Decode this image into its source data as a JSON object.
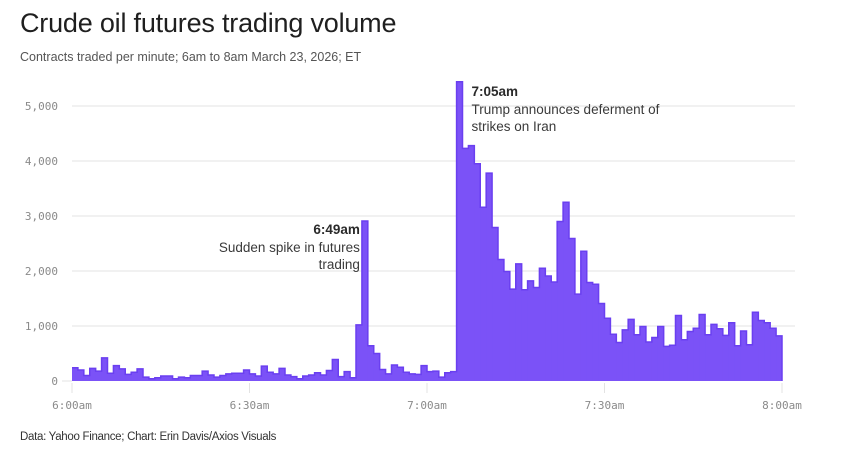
{
  "header": {
    "title": "Crude oil futures trading volume",
    "subtitle": "Contracts traded per minute; 6am to 8am March 23, 2026; ET"
  },
  "footer": {
    "source": "Data: Yahoo Finance; Chart: Erin Davis/Axios Visuals"
  },
  "colors": {
    "bar_fill": "#7b52f7",
    "bar_stroke": "#6a3ff0",
    "grid": "#e3e3e3",
    "axis_text": "#8a8a8a"
  },
  "chart_data": {
    "type": "area",
    "title": "Crude oil futures trading volume",
    "subtitle": "Contracts traded per minute; 6am to 8am March 23, 2026; ET",
    "xlabel": "",
    "ylabel": "Contracts traded per minute",
    "x_start": "6:00am",
    "x_end": "8:00am",
    "x_unit": "minute",
    "xlim": [
      0,
      120
    ],
    "ylim": [
      0,
      5000
    ],
    "grid": true,
    "y_ticks": [
      0,
      1000,
      2000,
      3000,
      4000,
      5000
    ],
    "y_tick_labels": [
      "0",
      "1,000",
      "2,000",
      "3,000",
      "4,000",
      "5,000"
    ],
    "x_ticks": [
      0,
      30,
      60,
      90,
      120
    ],
    "x_tick_labels": [
      "6:00am",
      "6:30am",
      "7:00am",
      "7:30am",
      "8:00am"
    ],
    "series": [
      {
        "name": "Contracts traded per minute",
        "values": [
          240,
          200,
          100,
          230,
          180,
          420,
          140,
          280,
          220,
          120,
          160,
          220,
          70,
          40,
          60,
          90,
          90,
          40,
          70,
          60,
          100,
          100,
          180,
          110,
          70,
          100,
          130,
          140,
          140,
          200,
          130,
          90,
          270,
          160,
          130,
          230,
          110,
          80,
          40,
          90,
          110,
          150,
          110,
          190,
          390,
          80,
          170,
          60,
          1020,
          2910,
          640,
          500,
          210,
          130,
          290,
          250,
          160,
          130,
          120,
          280,
          170,
          180,
          70,
          150,
          170,
          5440,
          4230,
          4280,
          3950,
          3160,
          3780,
          2790,
          2210,
          1990,
          1670,
          2130,
          1660,
          1820,
          1700,
          2050,
          1910,
          1800,
          2900,
          3250,
          2590,
          1580,
          2360,
          1790,
          1760,
          1410,
          1140,
          850,
          700,
          930,
          1120,
          840,
          990,
          710,
          790,
          990,
          630,
          650,
          1190,
          750,
          900,
          960,
          1210,
          840,
          1030,
          950,
          830,
          1060,
          640,
          910,
          660,
          1250,
          1100,
          1060,
          960,
          820
        ]
      }
    ],
    "annotations": [
      {
        "minute": 49,
        "time": "6:49am",
        "text_lines": [
          "Sudden spike in futures",
          "trading"
        ],
        "align": "right"
      },
      {
        "minute": 65,
        "time": "7:05am",
        "text_lines": [
          "Trump announces deferment of",
          "strikes on Iran"
        ],
        "align": "left"
      }
    ]
  }
}
